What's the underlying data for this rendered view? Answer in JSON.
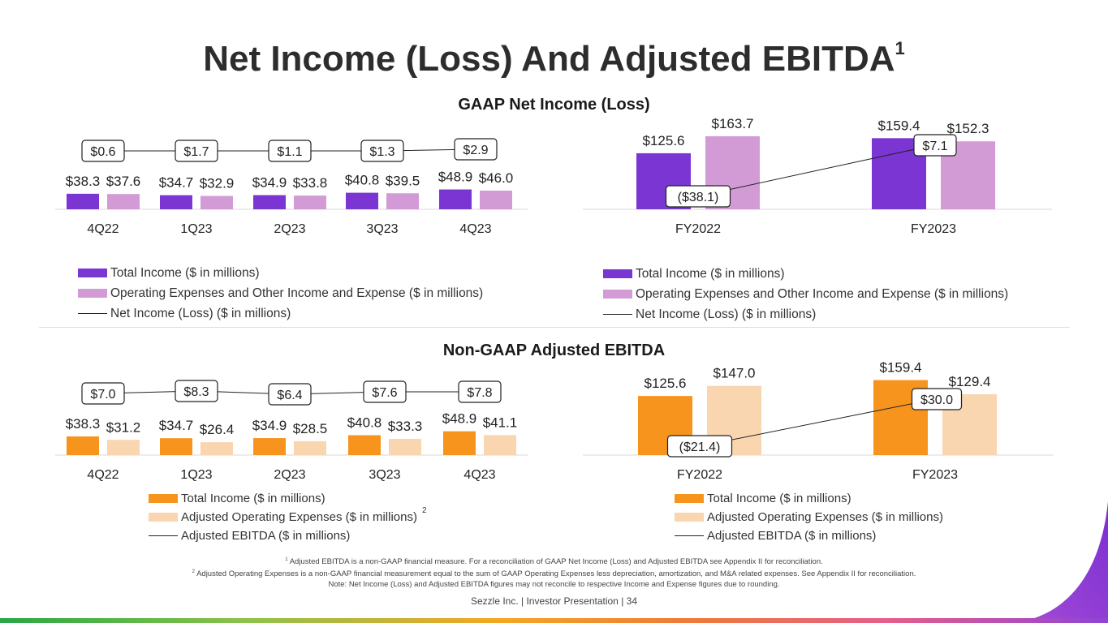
{
  "title": "Net Income (Loss) And Adjusted EBITDA",
  "title_sup": "1",
  "sections": {
    "gaap_title": "GAAP Net Income (Loss)",
    "nongaap_title": "Non-GAAP Adjusted EBITDA"
  },
  "colors": {
    "gaap_income": "#7b35d3",
    "gaap_expense": "#d29bd6",
    "ebitda_income": "#f7941d",
    "ebitda_expense": "#f9d5b0",
    "line": "#222222"
  },
  "legends": {
    "gaap_q": {
      "income": "Total Income ($ in millions)",
      "expense": "Operating Expenses and Other Income and Expense ($ in millions)",
      "line": "Net Income (Loss) ($ in millions)"
    },
    "gaap_fy": {
      "income": "Total Income ($ in millions)",
      "expense": "Operating Expenses and Other Income and Expense ($ in millions)",
      "line": "Net Income (Loss) ($ in millions)"
    },
    "ebitda_q": {
      "income": "Total Income ($ in millions)",
      "expense": "Adjusted Operating Expenses ($ in millions)",
      "expense_sup": "2",
      "line": "Adjusted EBITDA ($ in millions)"
    },
    "ebitda_fy": {
      "income": "Total Income ($ in millions)",
      "expense": "Adjusted Operating Expenses ($ in millions)",
      "line": "Adjusted EBITDA ($ in millions)"
    }
  },
  "chart_data": [
    {
      "id": "gaap_q",
      "type": "bar",
      "title": "GAAP Net Income (Loss)",
      "categories": [
        "4Q22",
        "1Q23",
        "2Q23",
        "3Q23",
        "4Q23"
      ],
      "series": [
        {
          "name": "Total Income ($ in millions)",
          "values": [
            38.3,
            34.7,
            34.9,
            40.8,
            48.9
          ],
          "labels": [
            "$38.3",
            "$34.7",
            "$34.9",
            "$40.8",
            "$48.9"
          ]
        },
        {
          "name": "Operating Expenses and Other Income and Expense ($ in millions)",
          "values": [
            37.6,
            32.9,
            33.8,
            39.5,
            46.0
          ],
          "labels": [
            "$37.6",
            "$32.9",
            "$33.8",
            "$39.5",
            "$46.0"
          ]
        }
      ],
      "line": {
        "name": "Net Income (Loss) ($ in millions)",
        "values": [
          0.6,
          1.7,
          1.1,
          1.3,
          2.9
        ],
        "labels": [
          "$0.6",
          "$1.7",
          "$1.1",
          "$1.3",
          "$2.9"
        ]
      }
    },
    {
      "id": "gaap_fy",
      "type": "bar",
      "title": "GAAP Net Income (Loss)",
      "categories": [
        "FY2022",
        "FY2023"
      ],
      "series": [
        {
          "name": "Total Income ($ in millions)",
          "values": [
            125.6,
            159.4
          ],
          "labels": [
            "$125.6",
            "$159.4"
          ]
        },
        {
          "name": "Operating Expenses and Other Income and Expense ($ in millions)",
          "values": [
            163.7,
            152.3
          ],
          "labels": [
            "$163.7",
            "$152.3"
          ]
        }
      ],
      "line": {
        "name": "Net Income (Loss) ($ in millions)",
        "values": [
          -38.1,
          7.1
        ],
        "labels": [
          "($38.1)",
          "$7.1"
        ]
      }
    },
    {
      "id": "ebitda_q",
      "type": "bar",
      "title": "Non-GAAP Adjusted EBITDA",
      "categories": [
        "4Q22",
        "1Q23",
        "2Q23",
        "3Q23",
        "4Q23"
      ],
      "series": [
        {
          "name": "Total Income ($ in millions)",
          "values": [
            38.3,
            34.7,
            34.9,
            40.8,
            48.9
          ],
          "labels": [
            "$38.3",
            "$34.7",
            "$34.9",
            "$40.8",
            "$48.9"
          ]
        },
        {
          "name": "Adjusted Operating Expenses ($ in millions)",
          "values": [
            31.2,
            26.4,
            28.5,
            33.3,
            41.1
          ],
          "labels": [
            "$31.2",
            "$26.4",
            "$28.5",
            "$33.3",
            "$41.1"
          ]
        }
      ],
      "line": {
        "name": "Adjusted EBITDA ($ in millions)",
        "values": [
          7.0,
          8.3,
          6.4,
          7.6,
          7.8
        ],
        "labels": [
          "$7.0",
          "$8.3",
          "$6.4",
          "$7.6",
          "$7.8"
        ]
      }
    },
    {
      "id": "ebitda_fy",
      "type": "bar",
      "title": "Non-GAAP Adjusted EBITDA",
      "categories": [
        "FY2022",
        "FY2023"
      ],
      "series": [
        {
          "name": "Total Income ($ in millions)",
          "values": [
            125.6,
            159.4
          ],
          "labels": [
            "$125.6",
            "$159.4"
          ]
        },
        {
          "name": "Adjusted Operating Expenses ($ in millions)",
          "values": [
            147.0,
            129.4
          ],
          "labels": [
            "$147.0",
            "$129.4"
          ]
        }
      ],
      "line": {
        "name": "Adjusted EBITDA ($ in millions)",
        "values": [
          -21.4,
          30.0
        ],
        "labels": [
          "($21.4)",
          "$30.0"
        ]
      }
    }
  ],
  "footnotes": {
    "fn1_sup": "1",
    "fn1": "Adjusted EBITDA is a non-GAAP financial measure. For a reconciliation of GAAP Net Income (Loss) and Adjusted EBITDA see Appendix II for reconciliation.",
    "fn2_sup": "2",
    "fn2": "Adjusted Operating Expenses is a non-GAAP financial measurement equal to the sum of GAAP Operating Expenses less depreciation, amortization, and M&A related expenses. See Appendix II for reconciliation.",
    "note": "Note: Net Income (Loss) and Adjusted EBITDA figures may not reconcile to respective Income and Expense figures due to rounding."
  },
  "footer": "Sezzle Inc. | Investor Presentation | 34"
}
